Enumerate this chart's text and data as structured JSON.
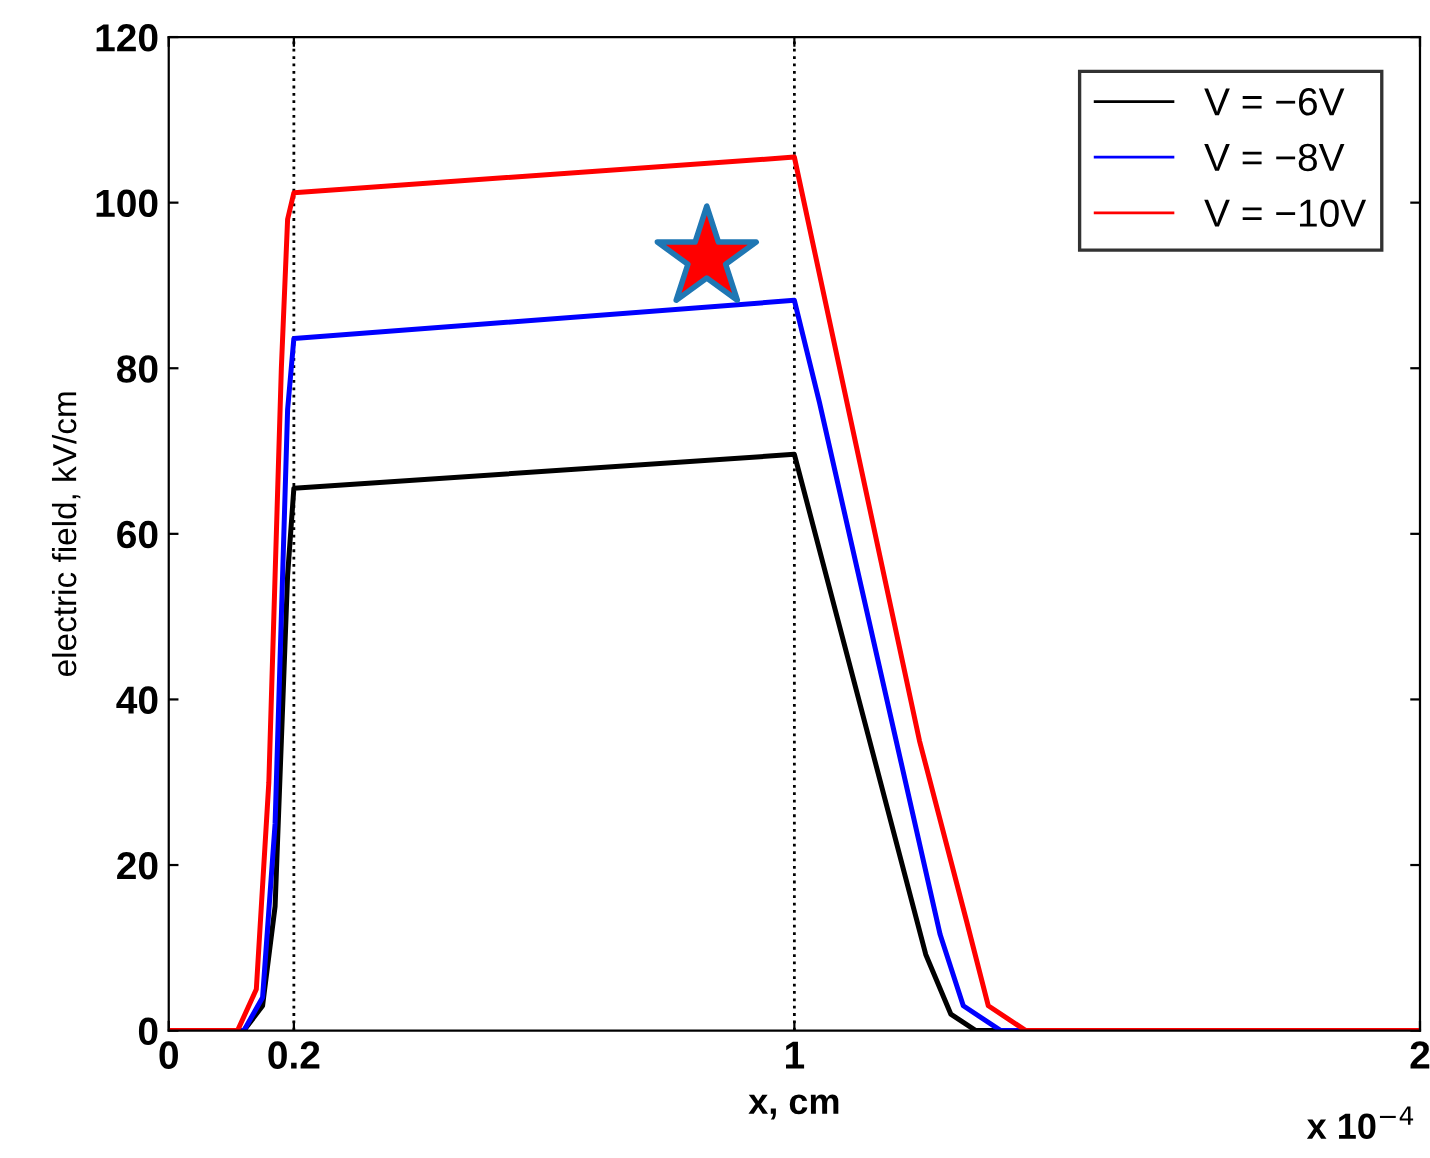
{
  "chart_data": {
    "type": "line",
    "xlabel": "x, cm",
    "ylabel": "electric field, kV/cm",
    "xlim": [
      0,
      2
    ],
    "xticks": [
      0,
      0.2,
      1,
      2
    ],
    "ylim": [
      0,
      120
    ],
    "yticks": [
      0,
      20,
      40,
      60,
      80,
      100,
      120
    ],
    "grid": false,
    "legend": "top right",
    "line_style": "solid",
    "annotations": [
      "x 10$^{−4}$"
    ],
    "ref_lines": [
      {
        "axis": "x",
        "value": 0.2,
        "color": "#000000",
        "line_style": "dotted"
      },
      {
        "axis": "x",
        "value": 1,
        "color": "#000000",
        "line_style": "dotted"
      }
    ],
    "series": [
      {
        "name": "V = −6V",
        "color": "#000000",
        "x": [
          0,
          0.12,
          0.15,
          0.17,
          0.18,
          0.19,
          0.2,
          1,
          1.21,
          1.25,
          1.29,
          2
        ],
        "values": [
          0,
          0,
          3,
          15,
          35,
          55,
          65.5,
          69.6,
          9.2,
          2,
          0,
          0
        ]
      },
      {
        "name": "V = −8V",
        "color": "#0000ff",
        "x": [
          0,
          0.12,
          0.15,
          0.17,
          0.18,
          0.19,
          0.2,
          1,
          1.04,
          1.233,
          1.27,
          1.33,
          2
        ],
        "values": [
          0,
          0,
          4,
          25,
          50,
          75,
          83.6,
          88.2,
          75.9,
          11.6,
          3,
          0,
          0
        ]
      },
      {
        "name": "V = −10V",
        "color": "#ff0000",
        "x": [
          0,
          0.11,
          0.14,
          0.16,
          0.17,
          0.18,
          0.19,
          0.2,
          1,
          1.2,
          1.275,
          1.31,
          1.37,
          2
        ],
        "values": [
          0,
          0,
          5,
          30,
          55,
          80,
          98,
          101.2,
          105.5,
          35,
          13.3,
          3,
          0,
          0
        ]
      }
    ]
  }
}
